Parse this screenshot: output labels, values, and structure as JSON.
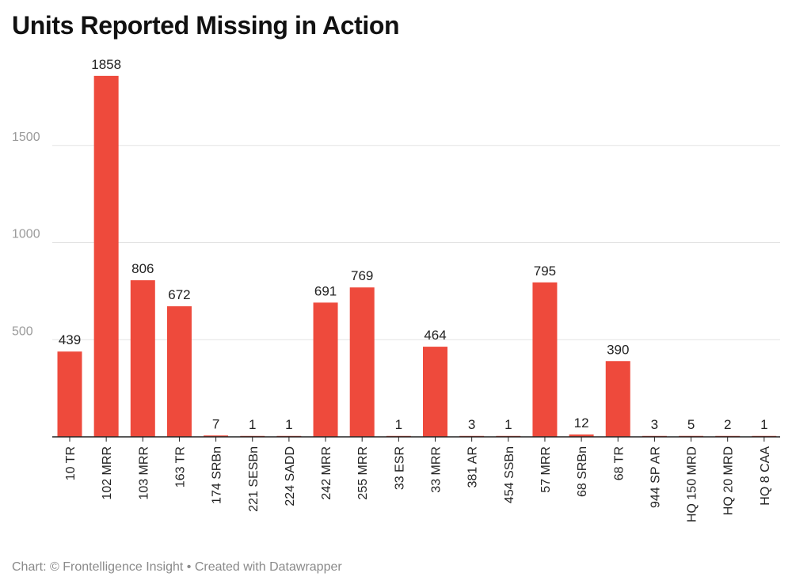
{
  "chart_data": {
    "type": "bar",
    "title": "Units Reported Missing in Action",
    "categories": [
      "10 TR",
      "102 MRR",
      "103 MRR",
      "163 TR",
      "174 SRBn",
      "221 SESBn",
      "224 SADD",
      "242 MRR",
      "255 MRR",
      "33 ESR",
      "33 MRR",
      "381 AR",
      "454 SSBn",
      "57 MRR",
      "68 SRBn",
      "68 TR",
      "944 SP AR",
      "HQ 150 MRD",
      "HQ 20 MRD",
      "HQ 8 CAA"
    ],
    "values": [
      439,
      1858,
      806,
      672,
      7,
      1,
      1,
      691,
      769,
      1,
      464,
      3,
      1,
      795,
      12,
      390,
      3,
      5,
      2,
      1
    ],
    "yticks": [
      500,
      1000,
      1500
    ],
    "ylim": [
      0,
      1950
    ],
    "grid": true,
    "bar_color": "#ee4a3c",
    "xlabel": "",
    "ylabel": ""
  },
  "footer": {
    "credit": "Chart: © Frontelligence Insight • Created with Datawrapper"
  }
}
